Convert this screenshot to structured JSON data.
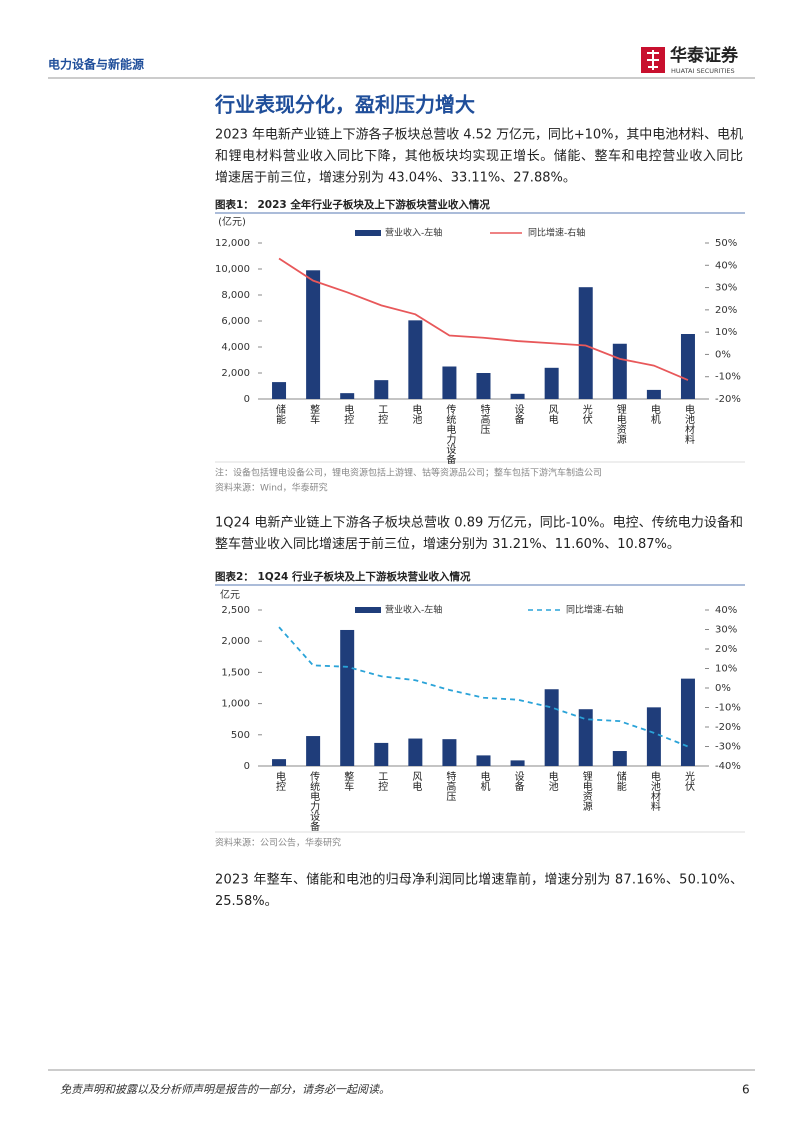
{
  "header": {
    "section": "电力设备与新能源",
    "logo": "华泰证券",
    "logo_en": "HUATAI SECURITIES"
  },
  "title": "行业表现分化，盈利压力增大",
  "paragraphs": [
    [
      "2023 年电新产业链上下游各子板块总营收 4.52 万亿元，同比+10%，其中电池材料、电机",
      "和锂电材料营业收入同比下降，其他板块均实现正增长。储能、整车和电控营业收入同比",
      "增速居于前三位，增速分别为 43.04%、33.11%、27.88%。"
    ],
    [
      "1Q24 电新产业链上下游各子板块总营收 0.89 万亿元，同比-10%。电控、传统电力设备和",
      "整车营业收入同比增速居于前三位，增速分别为 31.21%、11.60%、10.87%。"
    ],
    [
      "2023  年整车、储能和电池的归母净利润同比增速靠前，增速分别为  87.16%、50.10%、",
      "25.58%。"
    ]
  ],
  "figures": [
    {
      "caption": "图表1：  2023 全年行业子板块及上下游板块营业收入情况",
      "note": "注：设备包括锂电设备公司，锂电资源包括上游锂、钴等资源品公司；整车包括下游汽车制造公司",
      "source": "资料来源：Wind，华泰研究"
    },
    {
      "caption": "图表2：  1Q24 行业子板块及上下游板块营业收入情况",
      "source": "资料来源：公司公告，华泰研究"
    }
  ],
  "chart_data": [
    {
      "type": "combo",
      "y_label": "(亿元)",
      "categories": [
        "储能",
        "整车",
        "电控",
        "工控",
        "电池",
        "传统电力设备",
        "特高压",
        "设备",
        "风电",
        "光伏",
        "锂电资源",
        "电机",
        "电池材料"
      ],
      "series": [
        {
          "name": "营业收入-左轴",
          "type": "bar",
          "color": "#1f3d7a",
          "values": [
            1300,
            9900,
            450,
            1450,
            6050,
            2500,
            2000,
            400,
            2400,
            8600,
            4250,
            700,
            5000
          ]
        },
        {
          "name": "同比增速-右轴",
          "type": "line",
          "axis": "y2",
          "color": "#e8585a",
          "line_style": "solid",
          "values": [
            43.04,
            33.11,
            27.88,
            22,
            18,
            8.5,
            7.5,
            6,
            5,
            4,
            -2,
            -5,
            -11.5
          ]
        }
      ],
      "ylim": [
        0,
        12000
      ],
      "yticks": [
        0,
        {
          "value": 2000,
          "label": "2,000"
        },
        {
          "value": 4000,
          "label": "4,000"
        },
        {
          "value": 6000,
          "label": "6,000"
        },
        {
          "value": 8000,
          "label": "8,000"
        },
        {
          "value": 10000,
          "label": "10,000"
        },
        {
          "value": 12000,
          "label": "12,000"
        }
      ],
      "y2lim": [
        -20,
        50
      ],
      "y2ticks": [
        {
          "value": -20,
          "label": "-20%"
        },
        {
          "value": -10,
          "label": "-10%"
        },
        {
          "value": 0,
          "label": "0%"
        },
        {
          "value": 10,
          "label": "10%"
        },
        {
          "value": 20,
          "label": "20%"
        },
        {
          "value": 30,
          "label": "30%"
        },
        {
          "value": 40,
          "label": "40%"
        },
        {
          "value": 50,
          "label": "50%"
        }
      ]
    },
    {
      "type": "combo",
      "y_label": "亿元",
      "categories": [
        "电控",
        "传统电力设备",
        "整车",
        "工控",
        "风电",
        "特高压",
        "电机",
        "设备",
        "电池",
        "锂电资源",
        "储能",
        "电池材料",
        "光伏"
      ],
      "series": [
        {
          "name": "营业收入-左轴",
          "type": "bar",
          "color": "#1f3d7a",
          "values": [
            110,
            480,
            2180,
            370,
            440,
            430,
            170,
            90,
            1230,
            910,
            240,
            940,
            1400
          ]
        },
        {
          "name": "同比增速-右轴",
          "type": "line",
          "axis": "y2",
          "color": "#2aa3d8",
          "line_style": "dashed",
          "values": [
            31.21,
            11.6,
            10.87,
            6,
            4,
            -1,
            -5,
            -6,
            -10,
            -16,
            -17,
            -23,
            -30
          ]
        }
      ],
      "ylim": [
        0,
        2500
      ],
      "yticks": [
        0,
        500,
        {
          "value": 1000,
          "label": "1,000"
        },
        {
          "value": 1500,
          "label": "1,500"
        },
        {
          "value": 2000,
          "label": "2,000"
        },
        {
          "value": 2500,
          "label": "2,500"
        }
      ],
      "y2lim": [
        -40,
        40
      ],
      "y2ticks": [
        {
          "value": -40,
          "label": "-40%"
        },
        {
          "value": -30,
          "label": "-30%"
        },
        {
          "value": -20,
          "label": "-20%"
        },
        {
          "value": -10,
          "label": "-10%"
        },
        {
          "value": 0,
          "label": "0%"
        },
        {
          "value": 10,
          "label": "10%"
        },
        {
          "value": 20,
          "label": "20%"
        },
        {
          "value": 30,
          "label": "30%"
        },
        {
          "value": 40,
          "label": "40%"
        }
      ]
    }
  ],
  "footer": {
    "disclaimer": "免责声明和披露以及分析师声明是报告的一部分，请务必一起阅读。",
    "page": 6
  }
}
